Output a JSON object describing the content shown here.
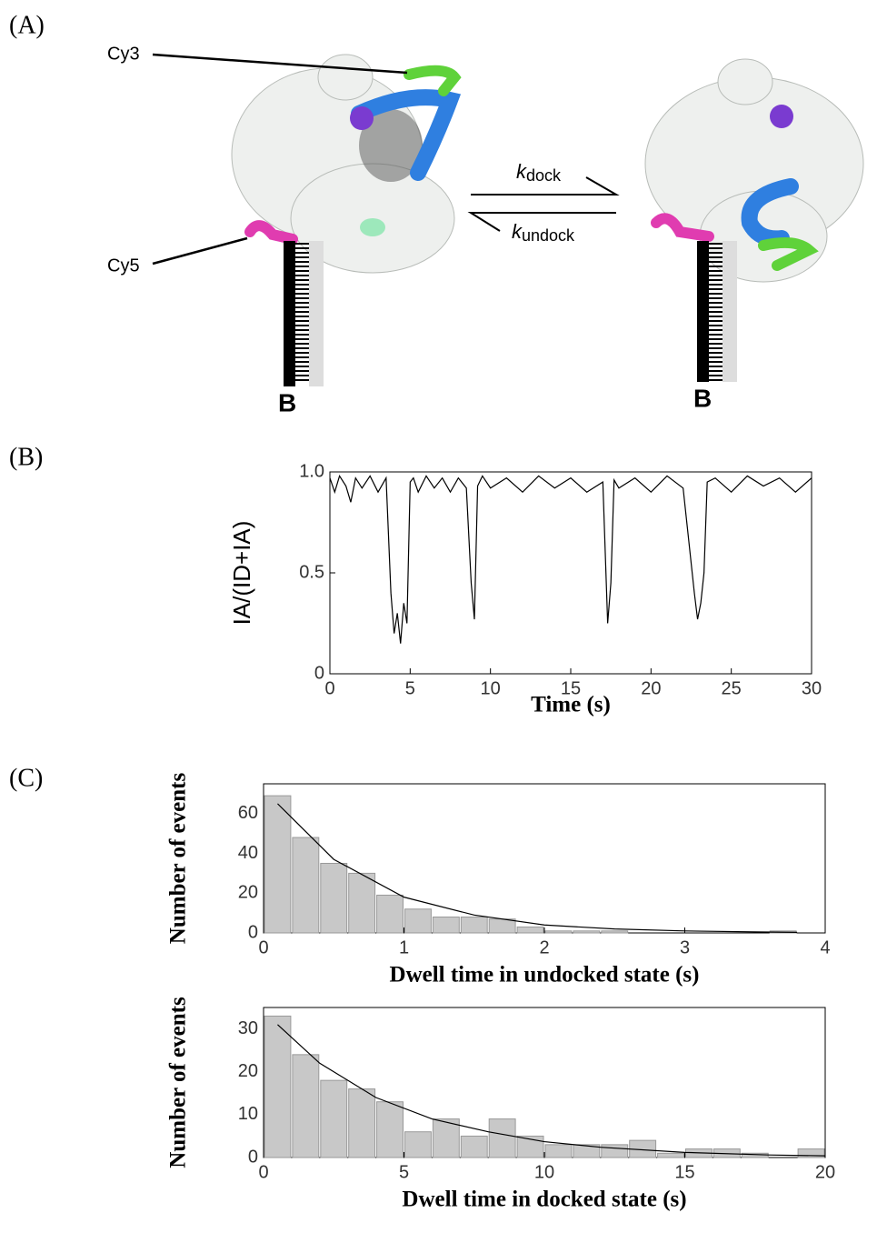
{
  "panels": {
    "a": "(A)",
    "b": "(B)",
    "c": "(C)"
  },
  "diagram": {
    "cy3": "Cy3",
    "cy5": "Cy5",
    "biotin_left": "B",
    "biotin_right": "B",
    "k_dock": {
      "symbol": "k",
      "subscript": "dock"
    },
    "k_undock": {
      "symbol": "k",
      "subscript": "undock"
    }
  },
  "chart_data": [
    {
      "type": "line",
      "ylabel": "IA/(ID+IA)",
      "xlabel": "Time (s)",
      "color": "#000000",
      "xlim": [
        0,
        30
      ],
      "xticks": [
        0,
        5,
        10,
        15,
        20,
        25,
        30
      ],
      "ylim": [
        0,
        1
      ],
      "yticks": [
        0,
        0.5,
        {
          "value": 1,
          "label": "1.0"
        }
      ],
      "x": [
        0,
        0.3,
        0.6,
        1,
        1.3,
        1.6,
        2,
        2.5,
        3,
        3.5,
        3.8,
        4,
        4.2,
        4.4,
        4.6,
        4.8,
        5,
        5.2,
        5.5,
        6,
        6.5,
        7,
        7.5,
        8,
        8.5,
        8.8,
        9,
        9.2,
        9.5,
        10,
        11,
        12,
        13,
        14,
        15,
        16,
        17,
        17.3,
        17.5,
        17.7,
        18,
        19,
        20,
        21,
        22,
        22.7,
        22.9,
        23.1,
        23.3,
        23.5,
        24,
        25,
        26,
        27,
        28,
        29,
        30
      ],
      "values": [
        0.97,
        0.9,
        0.98,
        0.93,
        0.85,
        0.97,
        0.92,
        0.98,
        0.9,
        0.97,
        0.4,
        0.2,
        0.3,
        0.15,
        0.35,
        0.25,
        0.95,
        0.97,
        0.9,
        0.98,
        0.92,
        0.97,
        0.9,
        0.97,
        0.92,
        0.45,
        0.27,
        0.93,
        0.98,
        0.92,
        0.97,
        0.9,
        0.98,
        0.92,
        0.97,
        0.9,
        0.95,
        0.25,
        0.45,
        0.96,
        0.92,
        0.97,
        0.9,
        0.98,
        0.92,
        0.4,
        0.27,
        0.35,
        0.5,
        0.95,
        0.97,
        0.9,
        0.98,
        0.93,
        0.97,
        0.9,
        0.97
      ]
    },
    {
      "type": "histogram",
      "ylabel": "Number of events",
      "xlabel": "Dwell time in undocked state (s)",
      "color": "#c8c8c8",
      "xlim": [
        0,
        4
      ],
      "xticks": [
        0,
        1,
        2,
        3,
        4
      ],
      "ylim": [
        0,
        75
      ],
      "yticks": [
        0,
        20,
        40,
        60
      ],
      "bins": [
        0,
        0.2,
        0.4,
        0.6,
        0.8,
        1,
        1.2,
        1.4,
        1.6,
        1.8,
        2,
        2.2,
        2.4,
        2.6,
        2.8,
        3,
        3.2,
        3.4,
        3.6,
        3.8,
        4
      ],
      "counts": [
        69,
        48,
        35,
        30,
        19,
        12,
        8,
        8,
        7,
        3,
        1,
        1,
        1,
        0,
        0,
        0,
        0,
        0,
        1,
        0
      ],
      "fit": {
        "x": [
          0.1,
          0.5,
          1,
          1.5,
          2,
          2.5,
          3,
          3.5,
          3.8
        ],
        "values": [
          65,
          37,
          18,
          9,
          4,
          2,
          1,
          0.5,
          0.3
        ]
      }
    },
    {
      "type": "histogram",
      "ylabel": "Number of events",
      "xlabel": "Dwell time in docked state (s)",
      "color": "#c8c8c8",
      "xlim": [
        0,
        20
      ],
      "xticks": [
        0,
        5,
        10,
        15,
        20
      ],
      "ylim": [
        0,
        35
      ],
      "yticks": [
        0,
        10,
        20,
        30
      ],
      "bins": [
        0,
        1,
        2,
        3,
        4,
        5,
        6,
        7,
        8,
        9,
        10,
        11,
        12,
        13,
        14,
        15,
        16,
        17,
        18,
        19,
        20
      ],
      "counts": [
        33,
        24,
        18,
        16,
        13,
        6,
        9,
        5,
        9,
        5,
        3,
        3,
        3,
        4,
        1,
        2,
        2,
        1,
        0,
        2
      ],
      "fit": {
        "x": [
          0.5,
          2,
          4,
          6,
          8,
          10,
          12,
          15,
          18,
          20
        ],
        "values": [
          31,
          22,
          14,
          9,
          6,
          3.7,
          2.4,
          1.2,
          0.6,
          0.4
        ]
      }
    }
  ]
}
